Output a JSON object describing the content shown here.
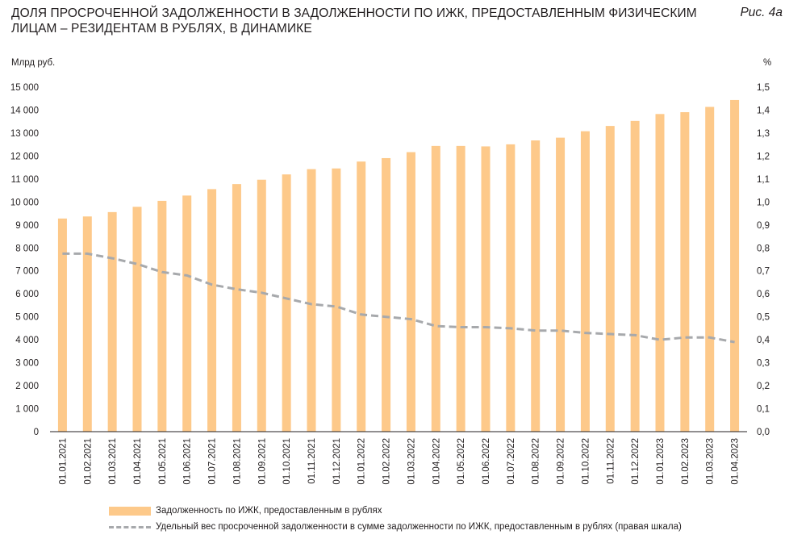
{
  "header": {
    "title_line1": "ДОЛЯ ПРОСРОЧЕННОЙ ЗАДОЛЖЕННОСТИ В ЗАДОЛЖЕННОСТИ ПО ИЖК, ПРЕДОСТАВЛЕННЫМ ФИЗИЧЕСКИМ",
    "title_line2": "ЛИЦАМ – РЕЗИДЕНТАМ В РУБЛЯХ, В ДИНАМИКЕ",
    "figure_label": "Рис. 4а"
  },
  "colors": {
    "bar": "#fdc98a",
    "line": "#a7a9ac"
  },
  "chart_data": {
    "type": "bar",
    "title": "ДОЛЯ ПРОСРОЧЕННОЙ ЗАДОЛЖЕННОСТИ В ЗАДОЛЖЕННОСТИ ПО ИЖК, ПРЕДОСТАВЛЕННЫМ ФИЗИЧЕСКИМ ЛИЦАМ – РЕЗИДЕНТАМ В РУБЛЯХ, В ДИНАМИКЕ",
    "ylabel": "Млрд руб.",
    "y2label": "%",
    "ylim": [
      0,
      15000
    ],
    "y2lim": [
      0,
      1.5
    ],
    "yticks": [
      "0",
      "1 000",
      "2 000",
      "3 000",
      "4 000",
      "5 000",
      "6 000",
      "7 000",
      "8 000",
      "9 000",
      "10 000",
      "11 000",
      "12 000",
      "13 000",
      "14 000",
      "15 000"
    ],
    "y2ticks": [
      "0,0",
      "0,1",
      "0,2",
      "0,3",
      "0,4",
      "0,5",
      "0,6",
      "0,7",
      "0,8",
      "0,9",
      "1,0",
      "1,1",
      "1,2",
      "1,3",
      "1,4",
      "1,5"
    ],
    "grid": false,
    "legend_position": "bottom",
    "categories": [
      "01.01.2021",
      "01.02.2021",
      "01.03.2021",
      "01.04.2021",
      "01.05.2021",
      "01.06.2021",
      "01.07.2021",
      "01.08.2021",
      "01.09.2021",
      "01.10.2021",
      "01.11.2021",
      "01.12.2021",
      "01.01.2022",
      "01.02.2022",
      "01.03.2022",
      "01.04.2022",
      "01.05.2022",
      "01.06.2022",
      "01.07.2022",
      "01.08.2022",
      "01.09.2022",
      "01.10.2022",
      "01.11.2022",
      "01.12.2022",
      "01.01.2023",
      "01.02.2023",
      "01.03.2023",
      "01.04.2023"
    ],
    "series": [
      {
        "name": "Задолженность по ИЖК, предоставленным в рублях",
        "type": "bar",
        "axis": "left",
        "values": [
          9280,
          9370,
          9560,
          9790,
          10050,
          10280,
          10560,
          10780,
          10970,
          11200,
          11430,
          11460,
          11760,
          11910,
          12170,
          12440,
          12440,
          12420,
          12510,
          12680,
          12800,
          13080,
          13310,
          13530,
          13830,
          13910,
          14140,
          14440
        ]
      },
      {
        "name": "Удельный вес просроченной задолженности в сумме задолженности по ИЖК, предоставленным в рублях (правая шкала)",
        "type": "line",
        "axis": "right",
        "values": [
          0.775,
          0.775,
          0.755,
          0.73,
          0.695,
          0.68,
          0.64,
          0.62,
          0.605,
          0.58,
          0.555,
          0.545,
          0.51,
          0.5,
          0.49,
          0.46,
          0.455,
          0.455,
          0.45,
          0.44,
          0.44,
          0.43,
          0.425,
          0.42,
          0.4,
          0.41,
          0.41,
          0.39
        ]
      }
    ]
  }
}
